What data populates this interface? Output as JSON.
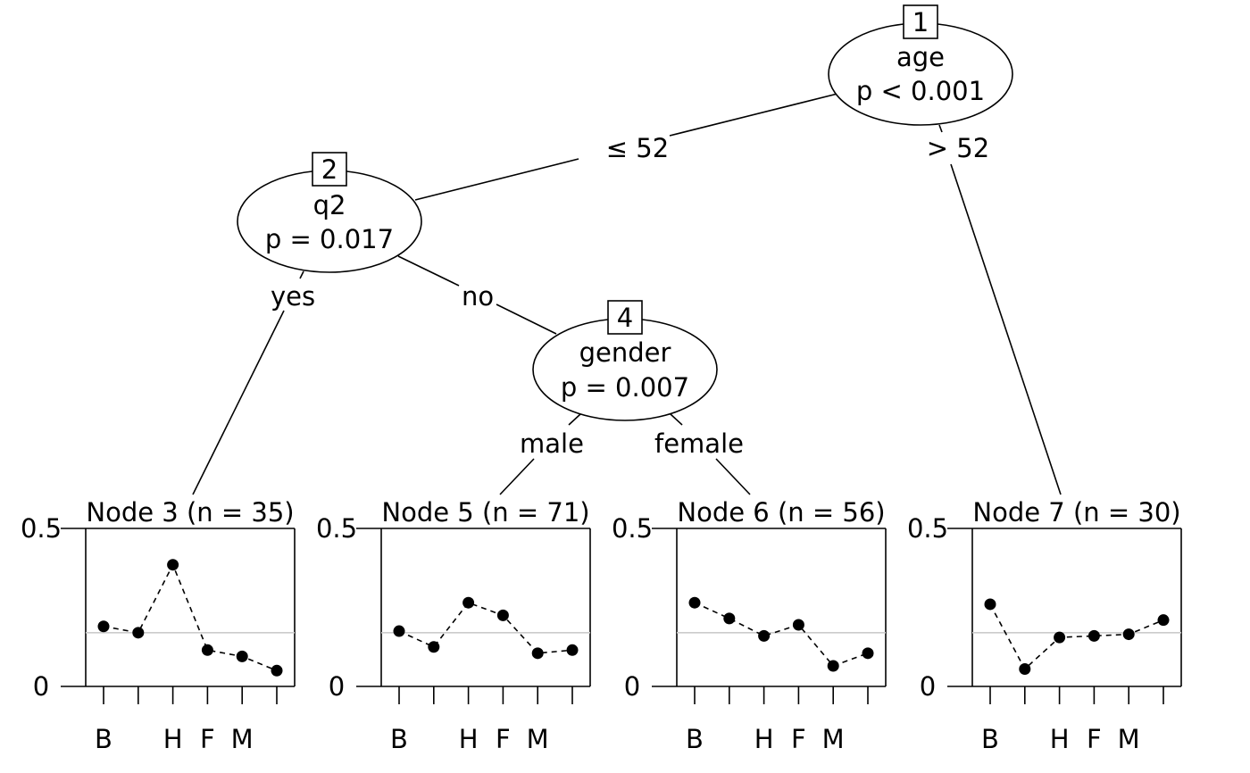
{
  "tree": {
    "inner_nodes": [
      {
        "id": "1",
        "variable": "age",
        "p_value": "p < 0.001"
      },
      {
        "id": "2",
        "variable": "q2",
        "p_value": "p = 0.017"
      },
      {
        "id": "4",
        "variable": "gender",
        "p_value": "p = 0.007"
      }
    ],
    "edges": [
      {
        "label": "≤ 52"
      },
      {
        "label": "> 52"
      },
      {
        "label": "yes"
      },
      {
        "label": "no"
      },
      {
        "label": "male"
      },
      {
        "label": "female"
      }
    ]
  },
  "chart_data": [
    {
      "type": "line",
      "title": "Node 3 (n = 35)",
      "categories": [
        "B",
        "",
        "H",
        "F",
        "M",
        ""
      ],
      "values": [
        0.19,
        0.17,
        0.385,
        0.115,
        0.095,
        0.05
      ],
      "reference": 0.17,
      "ylim": [
        0,
        0.5
      ],
      "yticks": [
        "0",
        "0.5"
      ]
    },
    {
      "type": "line",
      "title": "Node 5 (n = 71)",
      "categories": [
        "B",
        "",
        "H",
        "F",
        "M",
        ""
      ],
      "values": [
        0.175,
        0.125,
        0.265,
        0.225,
        0.105,
        0.115
      ],
      "reference": 0.17,
      "ylim": [
        0,
        0.5
      ],
      "yticks": [
        "0",
        "0.5"
      ]
    },
    {
      "type": "line",
      "title": "Node 6 (n = 56)",
      "categories": [
        "B",
        "",
        "H",
        "F",
        "M",
        ""
      ],
      "values": [
        0.265,
        0.215,
        0.16,
        0.195,
        0.065,
        0.105
      ],
      "reference": 0.17,
      "ylim": [
        0,
        0.5
      ],
      "yticks": [
        "0",
        "0.5"
      ]
    },
    {
      "type": "line",
      "title": "Node 7 (n = 30)",
      "categories": [
        "B",
        "",
        "H",
        "F",
        "M",
        ""
      ],
      "values": [
        0.26,
        0.055,
        0.155,
        0.16,
        0.165,
        0.21
      ],
      "reference": 0.17,
      "ylim": [
        0,
        0.5
      ],
      "yticks": [
        "0",
        "0.5"
      ]
    }
  ]
}
